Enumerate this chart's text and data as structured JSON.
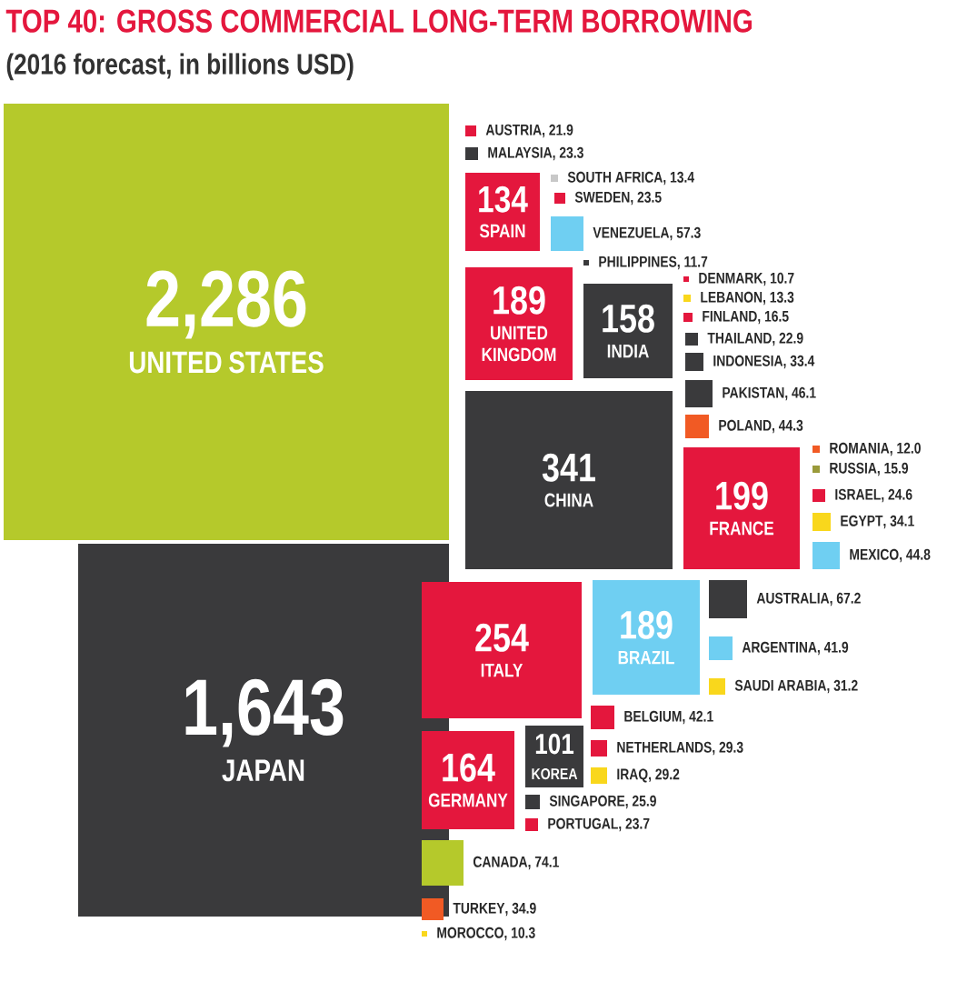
{
  "chart_data": {
    "type": "other",
    "title": "TOP 40: GROSS COMMERCIAL LONG-TERM BORROWING",
    "subtitle": "(2016 forecast, in billions USD)",
    "categories": [
      "UNITED STATES",
      "JAPAN",
      "AUSTRIA",
      "MALAYSIA",
      "SPAIN",
      "SOUTH AFRICA",
      "SWEDEN",
      "VENEZUELA",
      "PHILIPPINES",
      "UNITED KINGDOM",
      "INDIA",
      "DENMARK",
      "LEBANON",
      "FINLAND",
      "THAILAND",
      "INDONESIA",
      "PAKISTAN",
      "POLAND",
      "CHINA",
      "FRANCE",
      "ROMANIA",
      "RUSSIA",
      "ISRAEL",
      "EGYPT",
      "MEXICO",
      "ITALY",
      "BRAZIL",
      "AUSTRALIA",
      "ARGENTINA",
      "SAUDI ARABIA",
      "BELGIUM",
      "NETHERLANDS",
      "IRAQ",
      "GERMANY",
      "KOREA",
      "SINGAPORE",
      "PORTUGAL",
      "CANADA",
      "TURKEY",
      "MOROCCO"
    ],
    "values": [
      2286,
      1643,
      21.9,
      23.3,
      134,
      13.4,
      23.5,
      57.3,
      11.7,
      189,
      158,
      10.7,
      13.3,
      16.5,
      22.9,
      33.4,
      46.1,
      44.3,
      341,
      199,
      12.0,
      15.9,
      24.6,
      34.1,
      44.8,
      254,
      189,
      67.2,
      41.9,
      31.2,
      42.1,
      29.3,
      29.2,
      164,
      101,
      25.9,
      23.7,
      74.1,
      34.9,
      10.3
    ],
    "value_labels": [
      "2,286",
      "1,643",
      ", 21.9",
      ", 23.3",
      "134",
      ", 13.4",
      ", 23.5",
      ", 57.3",
      ", 11.7",
      "189",
      "158",
      ", 10.7",
      ", 13.3",
      ", 16.5",
      ", 22.9",
      ", 33.4",
      ", 46.1",
      ", 44.3",
      "341",
      "199",
      ", 12.0",
      ", 15.9",
      ", 24.6",
      ", 34.1",
      ", 44.8",
      "254",
      "189",
      ", 67.2",
      ", 41.9",
      ", 31.2",
      ", 42.1",
      ", 29.3",
      ", 29.2",
      "164",
      "101",
      ", 25.9",
      ", 23.7",
      ", 74.1",
      ", 34.9",
      ", 10.3"
    ],
    "colors": [
      "#b5c92b",
      "#3a3a3c",
      "#e4173d",
      "#3a3a3c",
      "#e4173d",
      "#c8c8c8",
      "#e4173d",
      "#6fcff2",
      "#3a3a3c",
      "#e4173d",
      "#3a3a3c",
      "#e4173d",
      "#f9d71c",
      "#e4173d",
      "#3a3a3c",
      "#3a3a3c",
      "#3a3a3c",
      "#f15a24",
      "#3a3a3c",
      "#e4173d",
      "#f15a24",
      "#9a9a3a",
      "#e4173d",
      "#f9d71c",
      "#6fcff2",
      "#e4173d",
      "#6fcff2",
      "#3a3a3c",
      "#6fcff2",
      "#f9d71c",
      "#e4173d",
      "#e4173d",
      "#f9d71c",
      "#e4173d",
      "#3a3a3c",
      "#3a3a3c",
      "#e4173d",
      "#b5c92b",
      "#f15a24",
      "#f9d71c"
    ]
  }
}
